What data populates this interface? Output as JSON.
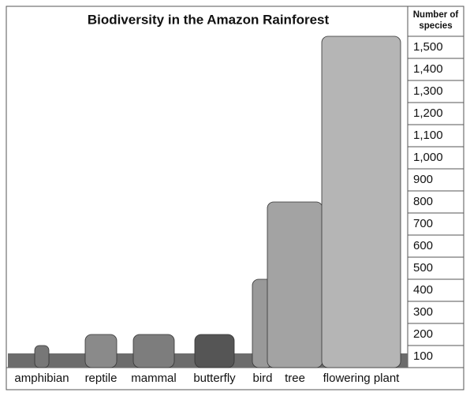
{
  "chart_data": {
    "type": "bar",
    "title": "Biodiversity in the Amazon Rainforest",
    "y_label": "Number of species",
    "categories": [
      "amphibian",
      "reptile",
      "mammal",
      "butterfly",
      "bird",
      "tree",
      "flowering plant"
    ],
    "values": [
      100,
      150,
      150,
      150,
      400,
      750,
      1500
    ],
    "color": "#8a8a8a",
    "ylim": [
      0,
      1500
    ],
    "yticks": [
      {
        "value": 100,
        "label": "100"
      },
      {
        "value": 200,
        "label": "200"
      },
      {
        "value": 300,
        "label": "300"
      },
      {
        "value": 400,
        "label": "400"
      },
      {
        "value": 500,
        "label": "500"
      },
      {
        "value": 600,
        "label": "600"
      },
      {
        "value": 700,
        "label": "700"
      },
      {
        "value": 800,
        "label": "800"
      },
      {
        "value": 900,
        "label": "900"
      },
      {
        "value": 1000,
        "label": "1,000"
      },
      {
        "value": 1100,
        "label": "1,100"
      },
      {
        "value": 1200,
        "label": "1,200"
      },
      {
        "value": 1300,
        "label": "1,300"
      },
      {
        "value": 1400,
        "label": "1,400"
      },
      {
        "value": 1500,
        "label": "1,500"
      }
    ]
  }
}
